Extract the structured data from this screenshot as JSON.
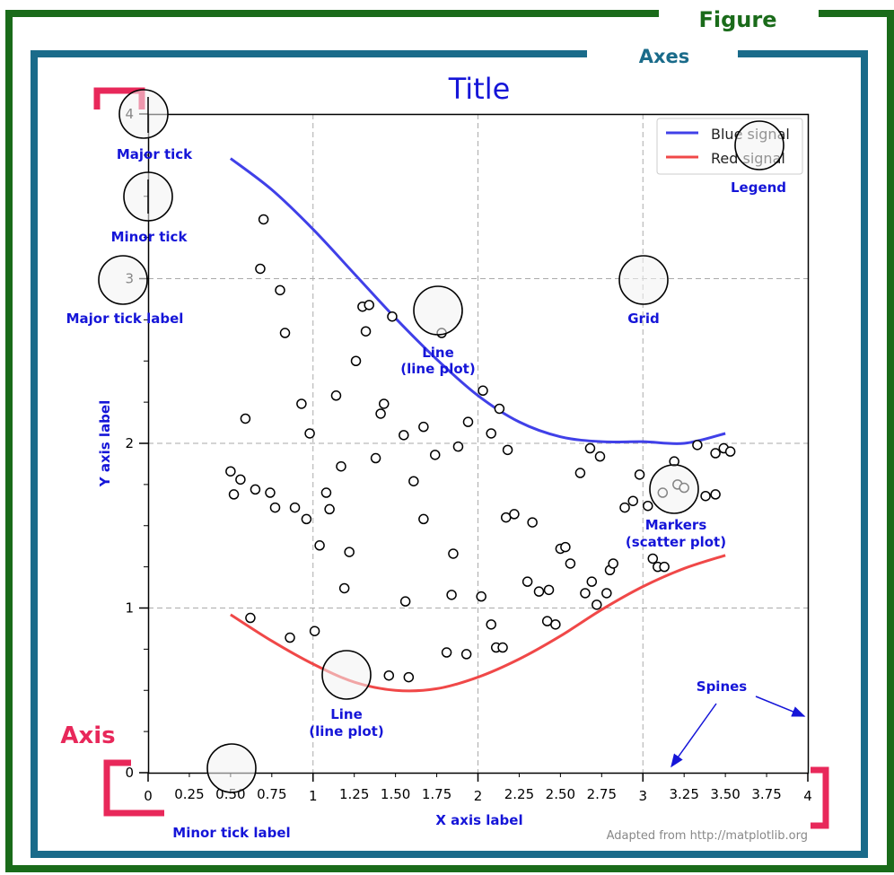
{
  "figure_label": "Figure",
  "axes_label": "Axes",
  "title": "Title",
  "axis_label": "Axis",
  "xlabel": "X axis label",
  "ylabel": "Y axis label",
  "credit": "Adapted from http://matplotlib.org",
  "annotations": {
    "major_tick": "Major tick",
    "minor_tick": "Minor tick",
    "major_tick_label": "Major tick label",
    "minor_tick_label": "Minor tick label",
    "line_plot_1": "Line",
    "line_plot_2": "(line plot)",
    "grid": "Grid",
    "legend": "Legend",
    "markers_1": "Markers",
    "markers_2": "(scatter plot)",
    "spines": "Spines"
  },
  "colors": {
    "figure_frame": "#1a6b1a",
    "axes_frame": "#1a6b8a",
    "annotation": "#1515d8",
    "axis_bracket": "#e8285a",
    "blue_signal": "#4040e8",
    "red_signal": "#f04848",
    "grid": "#aaaaaa"
  },
  "chart_data": {
    "type": "line",
    "xlim": [
      0,
      4
    ],
    "ylim": [
      0,
      4
    ],
    "x_major_ticks": [
      "0",
      "1",
      "2",
      "3",
      "4"
    ],
    "y_major_ticks": [
      "0",
      "1",
      "2",
      "3",
      "4"
    ],
    "x_minor_ticks": [
      "0.25",
      "0.50",
      "0.75",
      "1.25",
      "1.50",
      "1.75",
      "2.25",
      "2.50",
      "2.75",
      "3.25",
      "3.50",
      "3.75"
    ],
    "grid": true,
    "legend_position": "top-right",
    "series": [
      {
        "name": "Blue signal",
        "color": "#4040e8",
        "x": [
          0.5,
          0.75,
          1.0,
          1.25,
          1.5,
          1.75,
          2.0,
          2.25,
          2.5,
          2.75,
          3.0,
          3.25,
          3.5
        ],
        "y": [
          3.73,
          3.54,
          3.3,
          3.03,
          2.76,
          2.51,
          2.29,
          2.13,
          2.04,
          2.01,
          2.01,
          2.0,
          2.06
        ]
      },
      {
        "name": "Red signal",
        "color": "#f04848",
        "x": [
          0.5,
          0.75,
          1.0,
          1.25,
          1.5,
          1.75,
          2.0,
          2.25,
          2.5,
          2.75,
          3.0,
          3.25,
          3.5
        ],
        "y": [
          0.96,
          0.8,
          0.66,
          0.55,
          0.5,
          0.51,
          0.58,
          0.69,
          0.83,
          0.99,
          1.13,
          1.24,
          1.32
        ]
      }
    ],
    "scatter": {
      "name": "Markers",
      "points": [
        [
          0.7,
          3.36
        ],
        [
          0.68,
          3.06
        ],
        [
          0.8,
          2.93
        ],
        [
          0.83,
          2.67
        ],
        [
          0.59,
          2.15
        ],
        [
          0.93,
          2.24
        ],
        [
          0.98,
          2.06
        ],
        [
          0.5,
          1.83
        ],
        [
          0.56,
          1.78
        ],
        [
          0.52,
          1.69
        ],
        [
          0.65,
          1.72
        ],
        [
          0.74,
          1.7
        ],
        [
          0.77,
          1.61
        ],
        [
          0.89,
          1.61
        ],
        [
          0.96,
          1.54
        ],
        [
          1.04,
          1.38
        ],
        [
          1.1,
          1.6
        ],
        [
          1.08,
          1.7
        ],
        [
          1.17,
          1.86
        ],
        [
          1.14,
          2.29
        ],
        [
          1.26,
          2.5
        ],
        [
          1.32,
          2.68
        ],
        [
          1.3,
          2.83
        ],
        [
          1.34,
          2.84
        ],
        [
          1.48,
          2.77
        ],
        [
          1.43,
          2.24
        ],
        [
          1.41,
          2.18
        ],
        [
          1.38,
          1.91
        ],
        [
          1.55,
          2.05
        ],
        [
          1.67,
          2.1
        ],
        [
          1.74,
          1.93
        ],
        [
          1.78,
          2.67
        ],
        [
          1.88,
          1.98
        ],
        [
          1.94,
          2.13
        ],
        [
          2.03,
          2.32
        ],
        [
          2.08,
          2.06
        ],
        [
          2.13,
          2.21
        ],
        [
          2.18,
          1.96
        ],
        [
          1.61,
          1.77
        ],
        [
          1.67,
          1.54
        ],
        [
          2.17,
          1.55
        ],
        [
          2.22,
          1.57
        ],
        [
          2.33,
          1.52
        ],
        [
          1.85,
          1.33
        ],
        [
          1.22,
          1.34
        ],
        [
          1.19,
          1.12
        ],
        [
          1.56,
          1.04
        ],
        [
          1.84,
          1.08
        ],
        [
          2.02,
          1.07
        ],
        [
          2.3,
          1.16
        ],
        [
          2.37,
          1.1
        ],
        [
          2.43,
          1.11
        ],
        [
          2.5,
          1.36
        ],
        [
          2.53,
          1.37
        ],
        [
          2.56,
          1.27
        ],
        [
          2.65,
          1.09
        ],
        [
          2.69,
          1.16
        ],
        [
          2.72,
          1.02
        ],
        [
          2.78,
          1.09
        ],
        [
          2.8,
          1.23
        ],
        [
          2.82,
          1.27
        ],
        [
          2.62,
          1.82
        ],
        [
          2.68,
          1.97
        ],
        [
          2.74,
          1.92
        ],
        [
          2.89,
          1.61
        ],
        [
          2.94,
          1.65
        ],
        [
          2.98,
          1.81
        ],
        [
          3.03,
          1.62
        ],
        [
          3.12,
          1.7
        ],
        [
          3.21,
          1.75
        ],
        [
          3.25,
          1.73
        ],
        [
          3.38,
          1.68
        ],
        [
          3.44,
          1.69
        ],
        [
          3.33,
          1.99
        ],
        [
          3.44,
          1.94
        ],
        [
          3.49,
          1.97
        ],
        [
          3.53,
          1.95
        ],
        [
          3.06,
          1.3
        ],
        [
          3.09,
          1.25
        ],
        [
          3.13,
          1.25
        ],
        [
          3.19,
          1.89
        ],
        [
          0.62,
          0.94
        ],
        [
          0.86,
          0.82
        ],
        [
          1.01,
          0.86
        ],
        [
          1.46,
          0.59
        ],
        [
          1.58,
          0.58
        ],
        [
          1.93,
          0.72
        ],
        [
          1.81,
          0.73
        ],
        [
          2.08,
          0.9
        ],
        [
          2.11,
          0.76
        ],
        [
          2.15,
          0.76
        ],
        [
          2.42,
          0.92
        ],
        [
          2.47,
          0.9
        ]
      ]
    }
  }
}
